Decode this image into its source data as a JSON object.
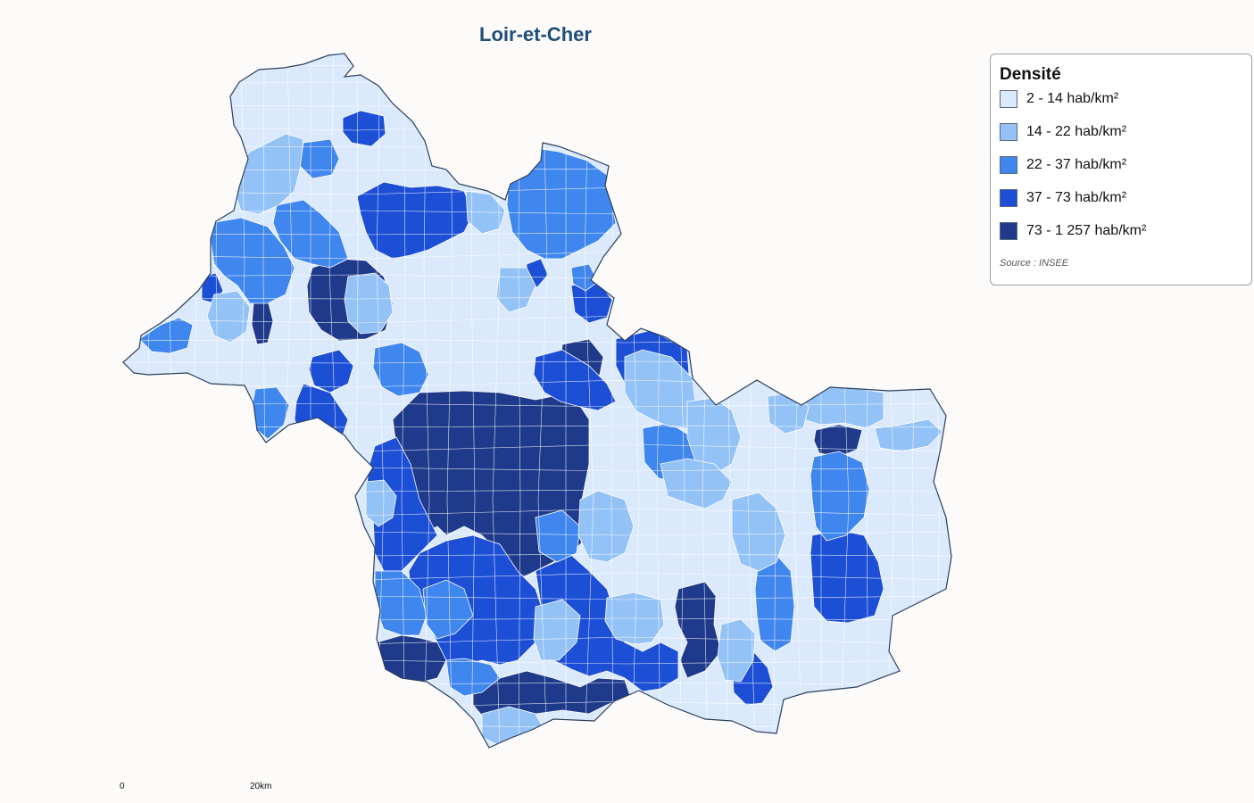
{
  "map": {
    "title": "Loir-et-Cher",
    "region": "Loir-et-Cher"
  },
  "legend": {
    "title": "Densité",
    "classes": [
      {
        "label": "2 - 14 hab/km²",
        "color": "#dbe9fc"
      },
      {
        "label": "14 - 22 hab/km²",
        "color": "#93c2f7"
      },
      {
        "label": "22 - 37 hab/km²",
        "color": "#3f86ef"
      },
      {
        "label": "37 - 73 hab/km²",
        "color": "#1c4fd6"
      },
      {
        "label": "73 - 1 257 hab/km²",
        "color": "#1f3a8a"
      }
    ],
    "source": "Source : INSEE"
  },
  "scale": {
    "start_label": "0",
    "end_label": "20km"
  },
  "colors": {
    "border": "#2b3f5c",
    "inner_line": "#ffffff",
    "title": "#1f4e79"
  }
}
